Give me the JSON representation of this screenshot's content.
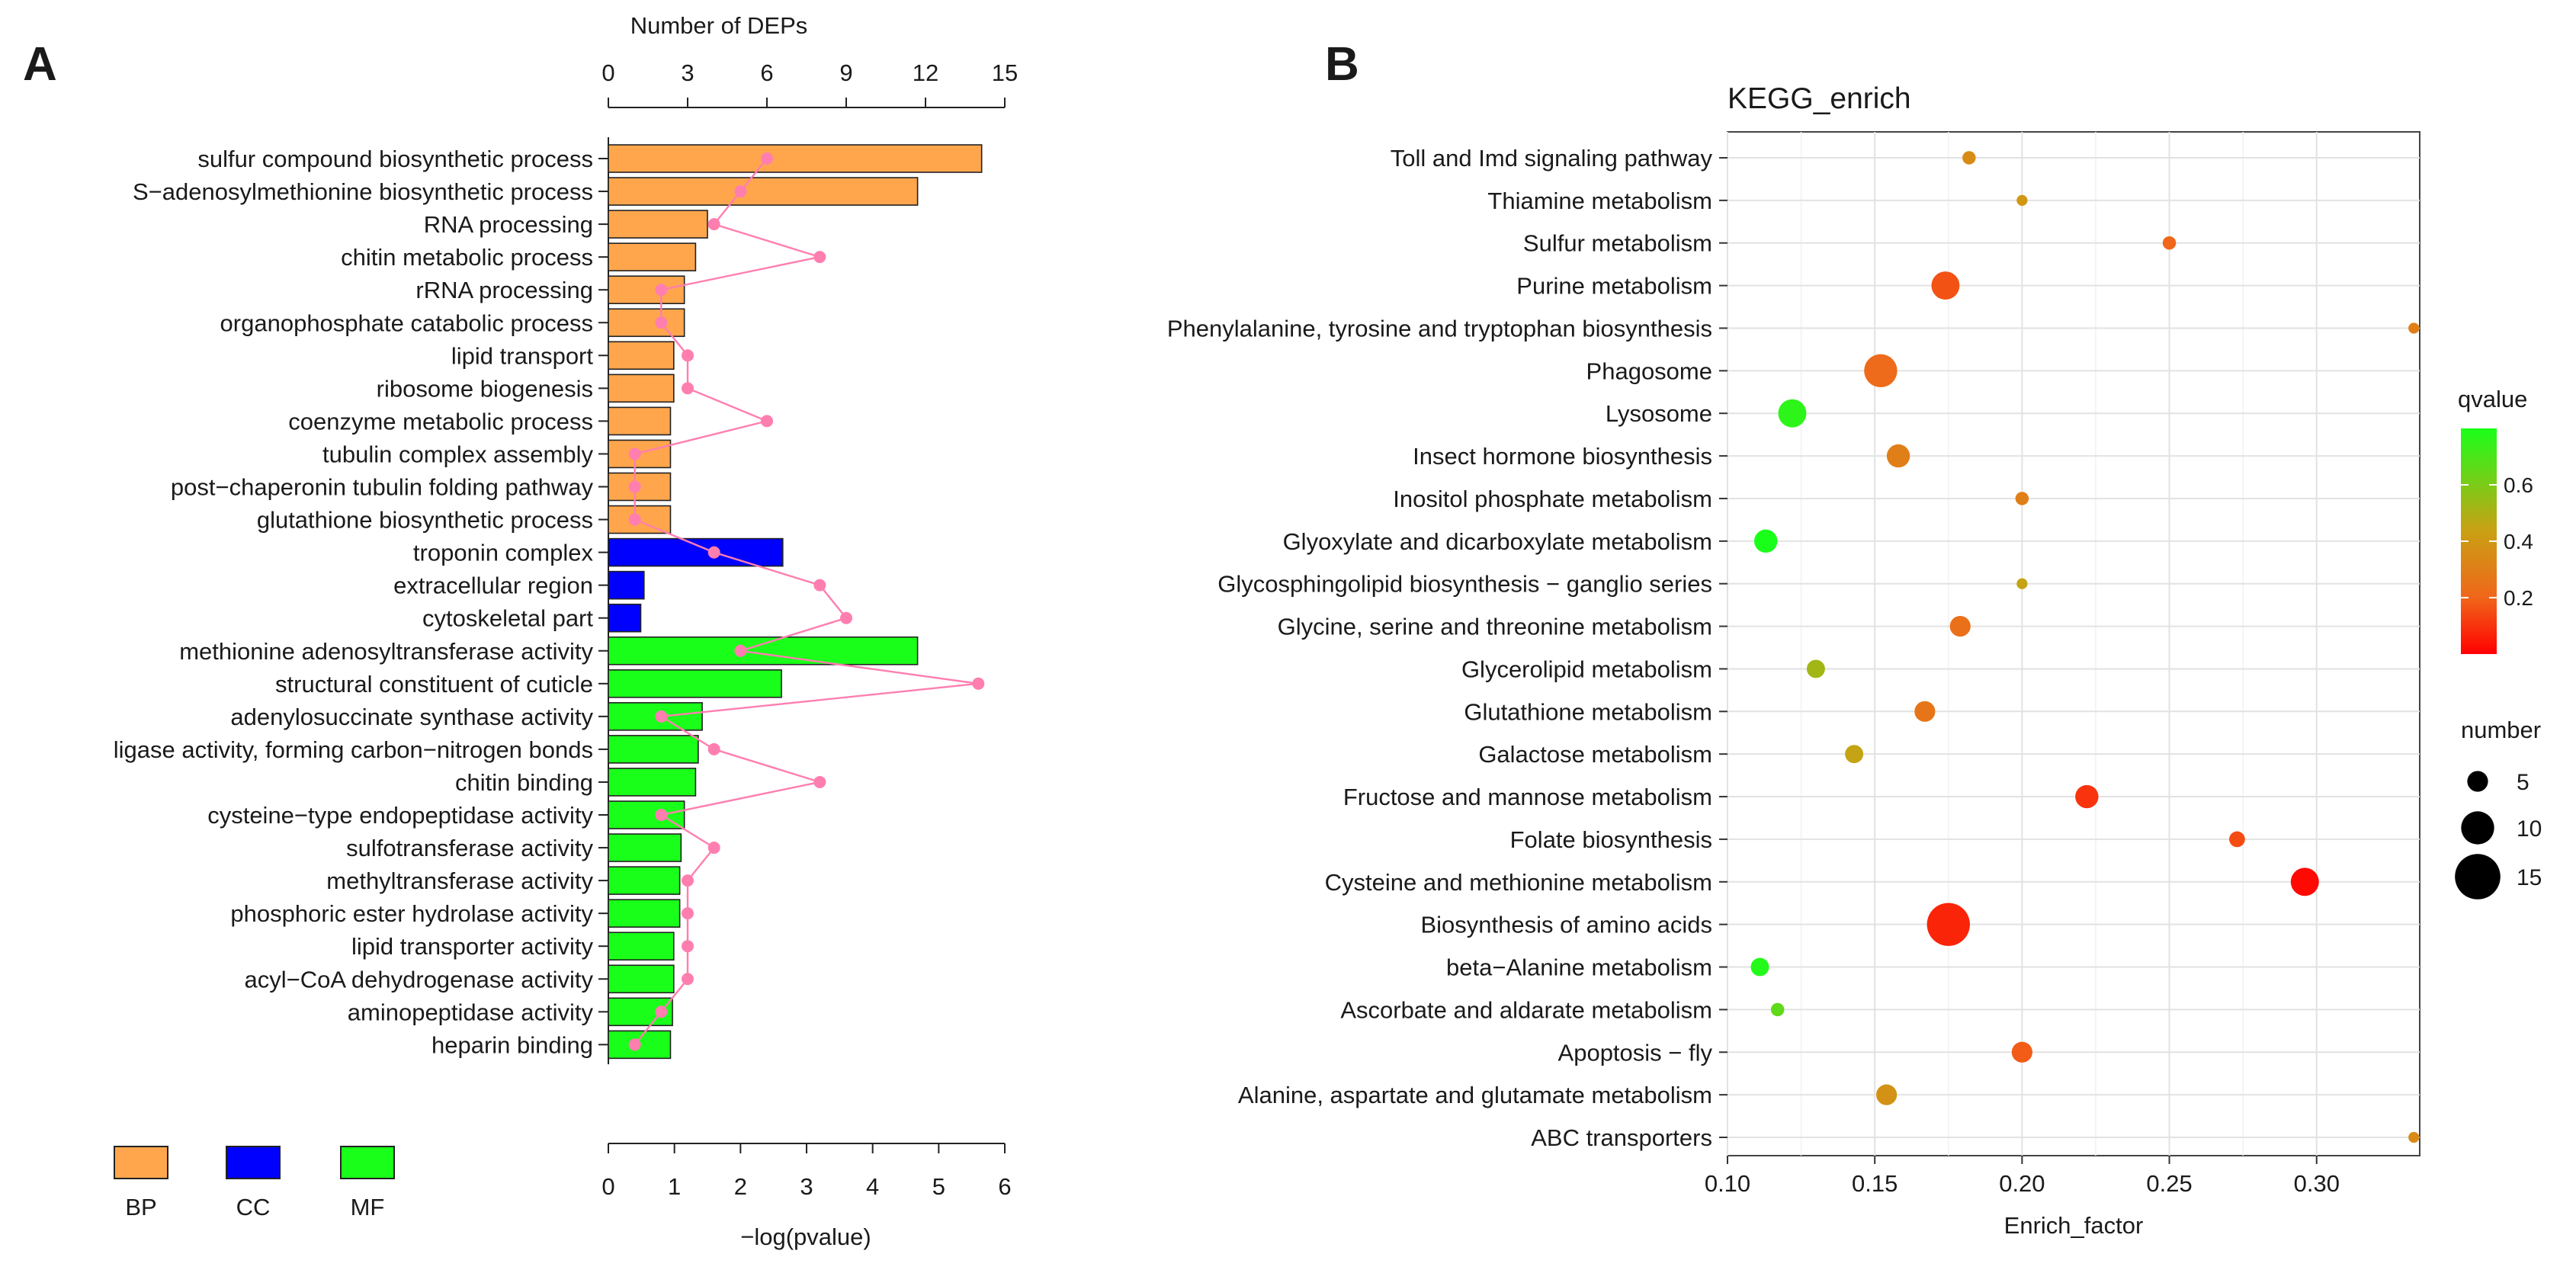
{
  "panels": {
    "A": {
      "label": "A"
    },
    "B": {
      "label": "B"
    }
  },
  "chart_data": [
    {
      "type": "bar",
      "panel": "A",
      "top_axis_title": "Number of DEPs",
      "top_axis_ticks": [
        "0",
        "3",
        "6",
        "9",
        "12",
        "15"
      ],
      "top_axis_range": [
        0,
        15
      ],
      "bottom_axis_title": "−log(pvalue)",
      "bottom_axis_ticks": [
        "0",
        "1",
        "2",
        "3",
        "4",
        "5",
        "6"
      ],
      "bottom_axis_range": [
        0,
        6
      ],
      "legend": [
        {
          "key": "BP",
          "color": "#FFA64D"
        },
        {
          "key": "CC",
          "color": "#0000FF"
        },
        {
          "key": "MF",
          "color": "#1AFF1A"
        }
      ],
      "line_color": "#FF7EB0",
      "terms": [
        {
          "label": "sulfur compound biosynthetic process",
          "category": "BP",
          "neglogp": 5.65,
          "deps": 6
        },
        {
          "label": "S−adenosylmethionine biosynthetic process",
          "category": "BP",
          "neglogp": 4.68,
          "deps": 5
        },
        {
          "label": "RNA processing",
          "category": "BP",
          "neglogp": 1.5,
          "deps": 4
        },
        {
          "label": "chitin metabolic process",
          "category": "BP",
          "neglogp": 1.32,
          "deps": 8
        },
        {
          "label": "rRNA processing",
          "category": "BP",
          "neglogp": 1.15,
          "deps": 2
        },
        {
          "label": "organophosphate catabolic process",
          "category": "BP",
          "neglogp": 1.15,
          "deps": 2
        },
        {
          "label": "lipid transport",
          "category": "BP",
          "neglogp": 0.99,
          "deps": 3
        },
        {
          "label": "ribosome biogenesis",
          "category": "BP",
          "neglogp": 0.99,
          "deps": 3
        },
        {
          "label": "coenzyme metabolic process",
          "category": "BP",
          "neglogp": 0.94,
          "deps": 6
        },
        {
          "label": "tubulin complex assembly",
          "category": "BP",
          "neglogp": 0.94,
          "deps": 1
        },
        {
          "label": "post−chaperonin tubulin folding pathway",
          "category": "BP",
          "neglogp": 0.94,
          "deps": 1
        },
        {
          "label": "glutathione biosynthetic process",
          "category": "BP",
          "neglogp": 0.94,
          "deps": 1
        },
        {
          "label": "troponin complex",
          "category": "CC",
          "neglogp": 2.64,
          "deps": 4
        },
        {
          "label": "extracellular region",
          "category": "CC",
          "neglogp": 0.54,
          "deps": 8
        },
        {
          "label": "cytoskeletal part",
          "category": "CC",
          "neglogp": 0.49,
          "deps": 9
        },
        {
          "label": "methionine adenosyltransferase activity",
          "category": "MF",
          "neglogp": 4.68,
          "deps": 5
        },
        {
          "label": "structural constituent of cuticle",
          "category": "MF",
          "neglogp": 2.62,
          "deps": 14
        },
        {
          "label": "adenylosuccinate synthase activity",
          "category": "MF",
          "neglogp": 1.42,
          "deps": 2
        },
        {
          "label": "ligase activity, forming carbon−nitrogen bonds",
          "category": "MF",
          "neglogp": 1.36,
          "deps": 4
        },
        {
          "label": "chitin binding",
          "category": "MF",
          "neglogp": 1.32,
          "deps": 8
        },
        {
          "label": "cysteine−type endopeptidase activity",
          "category": "MF",
          "neglogp": 1.15,
          "deps": 2
        },
        {
          "label": "sulfotransferase activity",
          "category": "MF",
          "neglogp": 1.1,
          "deps": 4
        },
        {
          "label": "methyltransferase activity",
          "category": "MF",
          "neglogp": 1.08,
          "deps": 3
        },
        {
          "label": "phosphoric ester hydrolase activity",
          "category": "MF",
          "neglogp": 1.08,
          "deps": 3
        },
        {
          "label": "lipid transporter activity",
          "category": "MF",
          "neglogp": 0.99,
          "deps": 3
        },
        {
          "label": "acyl−CoA dehydrogenase activity",
          "category": "MF",
          "neglogp": 0.99,
          "deps": 3
        },
        {
          "label": "aminopeptidase activity",
          "category": "MF",
          "neglogp": 0.97,
          "deps": 2
        },
        {
          "label": "heparin binding",
          "category": "MF",
          "neglogp": 0.94,
          "deps": 1
        }
      ]
    },
    {
      "type": "scatter",
      "panel": "B",
      "title": "KEGG_enrich",
      "xlabel": "Enrich_factor",
      "xlim": [
        0.1,
        0.335
      ],
      "x_ticks": [
        "0.10",
        "0.15",
        "0.20",
        "0.25",
        "0.30"
      ],
      "x_tick_values": [
        0.1,
        0.15,
        0.2,
        0.25,
        0.3
      ],
      "color_legend": {
        "title": "qvalue",
        "ticks": [
          "0.6",
          "0.4",
          "0.2"
        ],
        "tick_values": [
          0.6,
          0.4,
          0.2
        ],
        "range": [
          0,
          0.8
        ],
        "low_color": "#FF0000",
        "high_color": "#1AFF1A"
      },
      "size_legend": {
        "title": "number",
        "ticks": [
          "5",
          "10",
          "15"
        ],
        "tick_values": [
          5,
          10,
          15
        ]
      },
      "pathways": [
        {
          "name": "Toll and Imd signaling pathway",
          "enrich_factor": 0.182,
          "number": 2,
          "qvalue": 0.35
        },
        {
          "name": "Thiamine metabolism",
          "enrich_factor": 0.2,
          "number": 1,
          "qvalue": 0.4
        },
        {
          "name": "Sulfur metabolism",
          "enrich_factor": 0.25,
          "number": 2,
          "qvalue": 0.2
        },
        {
          "name": "Purine metabolism",
          "enrich_factor": 0.174,
          "number": 8,
          "qvalue": 0.16
        },
        {
          "name": "Phenylalanine, tyrosine and tryptophan biosynthesis",
          "enrich_factor": 0.333,
          "number": 1,
          "qvalue": 0.3
        },
        {
          "name": "Phagosome",
          "enrich_factor": 0.152,
          "number": 10,
          "qvalue": 0.22
        },
        {
          "name": "Lysosome",
          "enrich_factor": 0.122,
          "number": 8,
          "qvalue": 0.76
        },
        {
          "name": "Insect hormone biosynthesis",
          "enrich_factor": 0.158,
          "number": 6,
          "qvalue": 0.3
        },
        {
          "name": "Inositol phosphate metabolism",
          "enrich_factor": 0.2,
          "number": 2,
          "qvalue": 0.3
        },
        {
          "name": "Glyoxylate and dicarboxylate metabolism",
          "enrich_factor": 0.113,
          "number": 6,
          "qvalue": 0.8
        },
        {
          "name": "Glycosphingolipid biosynthesis − ganglio series",
          "enrich_factor": 0.2,
          "number": 1,
          "qvalue": 0.45
        },
        {
          "name": "Glycine, serine and threonine metabolism",
          "enrich_factor": 0.179,
          "number": 5,
          "qvalue": 0.24
        },
        {
          "name": "Glycerolipid metabolism",
          "enrich_factor": 0.13,
          "number": 4,
          "qvalue": 0.52
        },
        {
          "name": "Glutathione metabolism",
          "enrich_factor": 0.167,
          "number": 5,
          "qvalue": 0.26
        },
        {
          "name": "Galactose metabolism",
          "enrich_factor": 0.143,
          "number": 4,
          "qvalue": 0.45
        },
        {
          "name": "Fructose and mannose metabolism",
          "enrich_factor": 0.222,
          "number": 6,
          "qvalue": 0.1
        },
        {
          "name": "Folate biosynthesis",
          "enrich_factor": 0.273,
          "number": 3,
          "qvalue": 0.15
        },
        {
          "name": "Cysteine and methionine metabolism",
          "enrich_factor": 0.296,
          "number": 8,
          "qvalue": 0.02
        },
        {
          "name": "Biosynthesis of amino acids",
          "enrich_factor": 0.175,
          "number": 14,
          "qvalue": 0.07
        },
        {
          "name": "beta−Alanine metabolism",
          "enrich_factor": 0.111,
          "number": 4,
          "qvalue": 0.78
        },
        {
          "name": "Ascorbate and aldarate metabolism",
          "enrich_factor": 0.117,
          "number": 2,
          "qvalue": 0.66
        },
        {
          "name": "Apoptosis − fly",
          "enrich_factor": 0.2,
          "number": 5,
          "qvalue": 0.18
        },
        {
          "name": "Alanine, aspartate and glutamate metabolism",
          "enrich_factor": 0.154,
          "number": 5,
          "qvalue": 0.38
        },
        {
          "name": "ABC transporters",
          "enrich_factor": 0.333,
          "number": 1,
          "qvalue": 0.35
        }
      ]
    }
  ]
}
